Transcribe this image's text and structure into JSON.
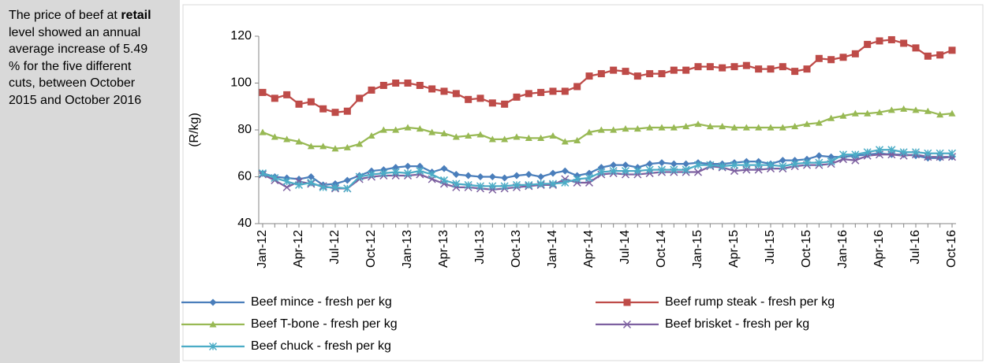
{
  "note": {
    "before": "The price of beef at",
    "bold": "retail",
    "after": "level showed an annual average increase of 5.49 % for the five different cuts, between October 2015 and October 2016"
  },
  "chart_data": {
    "type": "line",
    "y_label": "(R/kg)",
    "categories": [
      "Jan-12",
      null,
      null,
      "Apr-12",
      null,
      null,
      "Jul-12",
      null,
      null,
      "Oct-12",
      null,
      null,
      "Jan-13",
      null,
      null,
      "Apr-13",
      null,
      null,
      "Jul-13",
      null,
      null,
      "Oct-13",
      null,
      null,
      "Jan-14",
      null,
      null,
      "Apr-14",
      null,
      null,
      "Jul-14",
      null,
      null,
      "Oct-14",
      null,
      null,
      "Jan-15",
      null,
      null,
      "Apr-15",
      null,
      null,
      "Jul-15",
      null,
      null,
      "Oct-15",
      null,
      null,
      "Jan-16",
      null,
      null,
      "Apr-16",
      null,
      null,
      "Jul-16",
      null,
      null,
      "Oct-16"
    ],
    "ylim": [
      40,
      120
    ],
    "yticks": [
      40,
      60,
      80,
      100,
      120
    ],
    "grid": false,
    "legend": "bottom",
    "series": [
      {
        "name": "Beef mince - fresh per kg",
        "color": "#4a7ebb",
        "marker": "diamond",
        "values": [
          61.5,
          60,
          59.5,
          59,
          60,
          56.5,
          57,
          58.5,
          60.5,
          62.5,
          63,
          64,
          64.5,
          64.5,
          62,
          63.5,
          61,
          60.5,
          60,
          60,
          59.5,
          60.5,
          61,
          60,
          61.5,
          62.5,
          60.5,
          61.5,
          64,
          65,
          65,
          64,
          65.5,
          66,
          65.5,
          65.5,
          66,
          65.5,
          65.5,
          66,
          66.5,
          66.5,
          65.5,
          67,
          67,
          67.5,
          69,
          68.5,
          68.5,
          69,
          69.5,
          70,
          69.5,
          69.5,
          69,
          68,
          68,
          68.5
        ]
      },
      {
        "name": "Beef rump steak - fresh per kg",
        "color": "#be4b48",
        "marker": "square",
        "values": [
          96,
          93.5,
          95,
          91,
          92,
          89,
          87.5,
          88,
          93.5,
          97,
          99,
          100,
          100,
          99,
          97.5,
          96.5,
          95.5,
          93,
          93.5,
          91.5,
          91,
          94,
          95.5,
          96,
          96.5,
          96.5,
          98.5,
          103,
          104,
          105.5,
          105,
          103,
          104,
          104,
          105.5,
          105.5,
          107,
          107,
          106.5,
          107,
          107.5,
          106,
          106,
          107,
          105,
          106,
          110.5,
          110,
          111,
          112.5,
          116.5,
          118,
          118.5,
          117,
          115,
          111.5,
          112,
          114
        ]
      },
      {
        "name": "Beef T-bone - fresh per kg",
        "color": "#98b954",
        "marker": "triangle",
        "values": [
          79,
          77,
          76,
          75,
          73,
          73,
          72,
          72.5,
          74,
          77.5,
          80,
          80,
          81,
          80.5,
          79,
          78.5,
          77,
          77.5,
          78,
          76,
          76,
          77,
          76.5,
          76.5,
          77.5,
          75,
          75.5,
          79,
          80,
          80,
          80.5,
          80.5,
          81,
          81,
          81,
          81.5,
          82.5,
          81.5,
          81.5,
          81,
          81,
          81,
          81,
          81,
          81.5,
          82.5,
          83,
          85,
          86,
          87,
          87,
          87.5,
          88.5,
          89,
          88.5,
          88,
          86.5,
          87
        ]
      },
      {
        "name": "Beef brisket - fresh per kg",
        "color": "#7d60a0",
        "marker": "x",
        "values": [
          61,
          58.5,
          55.5,
          58,
          57,
          56,
          55,
          55,
          59,
          60,
          60.5,
          60.5,
          60.5,
          61,
          59,
          57,
          55.5,
          55.5,
          55,
          54.5,
          55,
          55.5,
          56,
          56.5,
          56.5,
          59,
          57.5,
          57.5,
          61,
          61.5,
          61,
          61,
          61.5,
          62,
          62,
          62,
          62,
          64.5,
          64,
          62.5,
          63,
          63,
          63.5,
          63.5,
          64.5,
          65,
          65,
          65.5,
          67.5,
          67,
          69,
          69.5,
          69.5,
          69,
          69.5,
          68.5,
          68.5,
          68.5
        ]
      },
      {
        "name": "Beef chuck - fresh per kg",
        "color": "#4bacc6",
        "marker": "star",
        "values": [
          61.5,
          59.5,
          58,
          56.5,
          57.5,
          55.5,
          55.5,
          55,
          60,
          61,
          61.5,
          62,
          61.5,
          62.5,
          61,
          58.5,
          57,
          56.5,
          56,
          56,
          56,
          56.5,
          56.5,
          57,
          57,
          57.5,
          59,
          59.5,
          62,
          62.5,
          62.5,
          62.5,
          63,
          63,
          63,
          63,
          65,
          65,
          64.5,
          65,
          65,
          65,
          65,
          64.5,
          65.5,
          66,
          66,
          66.5,
          69.5,
          69.5,
          70.5,
          71.5,
          71.5,
          70.5,
          70.5,
          70,
          70,
          70
        ]
      }
    ]
  }
}
